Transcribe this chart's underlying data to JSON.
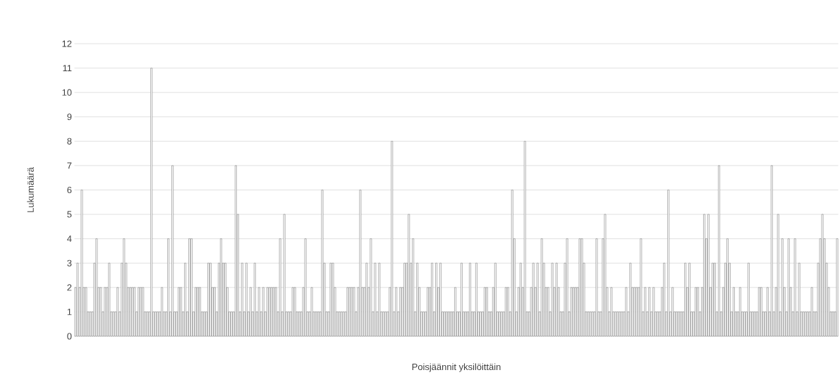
{
  "chart_data": {
    "type": "bar",
    "xlabel": "Poisjäännit yksilöittäin",
    "ylabel": "Lukumäärä",
    "color": "#7f7f7f",
    "grid": "y",
    "ylim": [
      0,
      12
    ],
    "yticks": [
      0,
      1,
      2,
      3,
      4,
      5,
      6,
      7,
      8,
      9,
      10,
      11,
      12
    ],
    "categories": [
      null,
      null,
      null,
      null,
      null,
      null,
      null,
      null,
      null,
      null,
      null,
      null,
      null,
      null,
      null,
      null,
      null,
      null,
      null,
      null,
      null,
      null,
      null,
      null,
      null,
      null,
      null,
      null,
      null,
      null,
      null,
      null,
      null,
      null,
      null,
      null,
      null,
      null,
      null,
      null,
      null,
      null,
      null,
      null,
      null,
      null,
      null,
      null,
      null,
      null,
      null,
      null,
      null,
      null,
      null,
      null,
      null,
      null,
      null,
      null,
      null,
      null,
      null,
      null,
      null,
      null,
      null,
      null,
      null,
      null,
      null,
      null,
      null,
      null,
      null,
      null,
      null,
      null,
      null,
      null,
      null,
      null,
      null,
      null,
      null,
      null,
      null,
      null,
      null,
      null,
      null,
      null,
      null,
      null,
      null,
      null,
      null,
      null,
      null,
      null,
      null,
      null,
      null,
      null,
      null,
      null,
      null,
      null,
      null,
      null,
      null,
      null,
      null,
      null,
      null,
      null,
      null,
      null,
      null,
      null,
      null,
      null,
      null,
      null,
      null,
      null,
      null,
      null,
      null,
      null,
      null,
      null,
      null,
      null,
      null,
      null,
      null,
      null,
      null,
      null,
      null,
      null,
      null,
      null,
      null,
      null,
      null,
      null,
      null,
      null,
      null,
      null,
      null,
      null,
      null,
      null,
      null,
      null,
      null,
      null,
      null,
      null,
      null,
      null,
      null,
      null,
      null,
      null,
      null,
      null,
      null,
      null,
      null,
      null,
      null,
      null,
      null,
      null,
      null,
      null,
      null,
      null,
      null,
      null,
      null,
      null,
      null,
      null,
      null,
      null,
      null,
      null,
      null,
      null,
      null,
      null,
      null,
      null,
      null,
      null,
      null,
      null,
      null,
      null,
      null,
      null,
      null,
      null,
      null,
      null,
      null,
      null,
      null,
      null,
      null,
      null,
      null,
      null,
      null,
      null,
      null,
      null,
      null,
      null,
      null,
      null,
      null,
      null,
      null,
      null,
      null,
      null,
      null,
      null,
      null,
      null,
      null,
      null,
      null,
      null,
      null,
      null,
      null,
      null,
      null,
      null,
      null,
      null,
      null,
      null,
      null,
      null,
      null,
      null,
      null,
      null,
      null,
      null,
      null,
      null,
      null,
      null,
      null,
      null,
      null,
      null,
      null,
      null,
      null,
      null,
      null,
      null,
      null,
      null,
      null,
      null,
      null,
      null,
      null,
      null,
      null,
      null,
      null,
      null,
      null,
      null,
      null,
      null,
      null,
      null,
      null,
      null,
      null,
      null,
      null,
      null,
      null,
      null,
      null,
      null,
      null,
      null,
      null,
      null,
      null,
      null,
      null,
      null,
      null,
      null,
      null,
      null,
      null,
      null,
      null,
      null,
      null,
      null,
      null,
      null,
      null,
      null,
      null,
      null,
      null,
      null,
      null,
      null,
      null,
      null,
      null,
      null,
      null,
      null,
      null,
      null,
      null,
      null,
      null,
      null,
      null,
      null,
      null,
      null,
      null,
      null,
      null,
      null,
      null,
      null,
      null,
      null,
      null,
      null,
      null,
      null,
      null,
      null,
      null,
      null,
      null,
      null
    ],
    "values": [
      2,
      3,
      2,
      6,
      2,
      2,
      1,
      1,
      1,
      3,
      4,
      2,
      2,
      1,
      2,
      2,
      3,
      1,
      1,
      1,
      2,
      1,
      3,
      4,
      3,
      2,
      2,
      2,
      2,
      1,
      2,
      2,
      2,
      1,
      1,
      1,
      11,
      1,
      1,
      1,
      1,
      2,
      1,
      1,
      4,
      1,
      7,
      1,
      1,
      2,
      2,
      1,
      3,
      1,
      4,
      4,
      1,
      2,
      2,
      2,
      1,
      1,
      1,
      3,
      3,
      2,
      2,
      1,
      3,
      4,
      3,
      3,
      2,
      1,
      1,
      1,
      7,
      5,
      1,
      3,
      1,
      3,
      1,
      2,
      1,
      3,
      1,
      2,
      1,
      2,
      1,
      2,
      2,
      2,
      2,
      2,
      1,
      4,
      1,
      5,
      1,
      1,
      1,
      2,
      2,
      1,
      1,
      1,
      2,
      4,
      1,
      1,
      2,
      1,
      1,
      1,
      1,
      6,
      3,
      1,
      1,
      3,
      3,
      2,
      1,
      1,
      1,
      1,
      1,
      2,
      2,
      2,
      2,
      1,
      2,
      6,
      2,
      2,
      3,
      2,
      4,
      1,
      3,
      1,
      3,
      1,
      1,
      1,
      1,
      2,
      8,
      1,
      2,
      1,
      2,
      2,
      3,
      3,
      5,
      3,
      4,
      1,
      3,
      2,
      1,
      1,
      1,
      2,
      2,
      3,
      1,
      3,
      2,
      3,
      1,
      1,
      1,
      1,
      1,
      1,
      2,
      1,
      1,
      3,
      1,
      1,
      1,
      3,
      1,
      1,
      3,
      1,
      1,
      1,
      2,
      2,
      1,
      1,
      2,
      3,
      1,
      1,
      1,
      1,
      2,
      2,
      1,
      6,
      4,
      1,
      2,
      3,
      2,
      8,
      1,
      1,
      2,
      3,
      2,
      3,
      1,
      4,
      3,
      2,
      2,
      1,
      3,
      2,
      3,
      2,
      1,
      1,
      3,
      4,
      1,
      2,
      2,
      2,
      2,
      4,
      4,
      3,
      1,
      1,
      1,
      1,
      1,
      4,
      1,
      1,
      4,
      5,
      2,
      1,
      2,
      1,
      1,
      1,
      1,
      1,
      1,
      2,
      1,
      3,
      2,
      2,
      2,
      2,
      4,
      1,
      2,
      1,
      2,
      1,
      2,
      1,
      1,
      1,
      2,
      3,
      1,
      6,
      1,
      2,
      1,
      1,
      1,
      1,
      1,
      3,
      2,
      3,
      1,
      1,
      2,
      2,
      1,
      2,
      5,
      4,
      5,
      2,
      3,
      3,
      1,
      7,
      1,
      2,
      3,
      4,
      3,
      1,
      2,
      1,
      1,
      2,
      1,
      1,
      1,
      3,
      1,
      1,
      1,
      1,
      2,
      2,
      1,
      1,
      2,
      1,
      7,
      1,
      2,
      5,
      1,
      4,
      2,
      1,
      4,
      2,
      1,
      4,
      1,
      3,
      1,
      1,
      1,
      1,
      1,
      2,
      1,
      1,
      3,
      4,
      5,
      4,
      3,
      2,
      1,
      1,
      1,
      4
    ]
  }
}
